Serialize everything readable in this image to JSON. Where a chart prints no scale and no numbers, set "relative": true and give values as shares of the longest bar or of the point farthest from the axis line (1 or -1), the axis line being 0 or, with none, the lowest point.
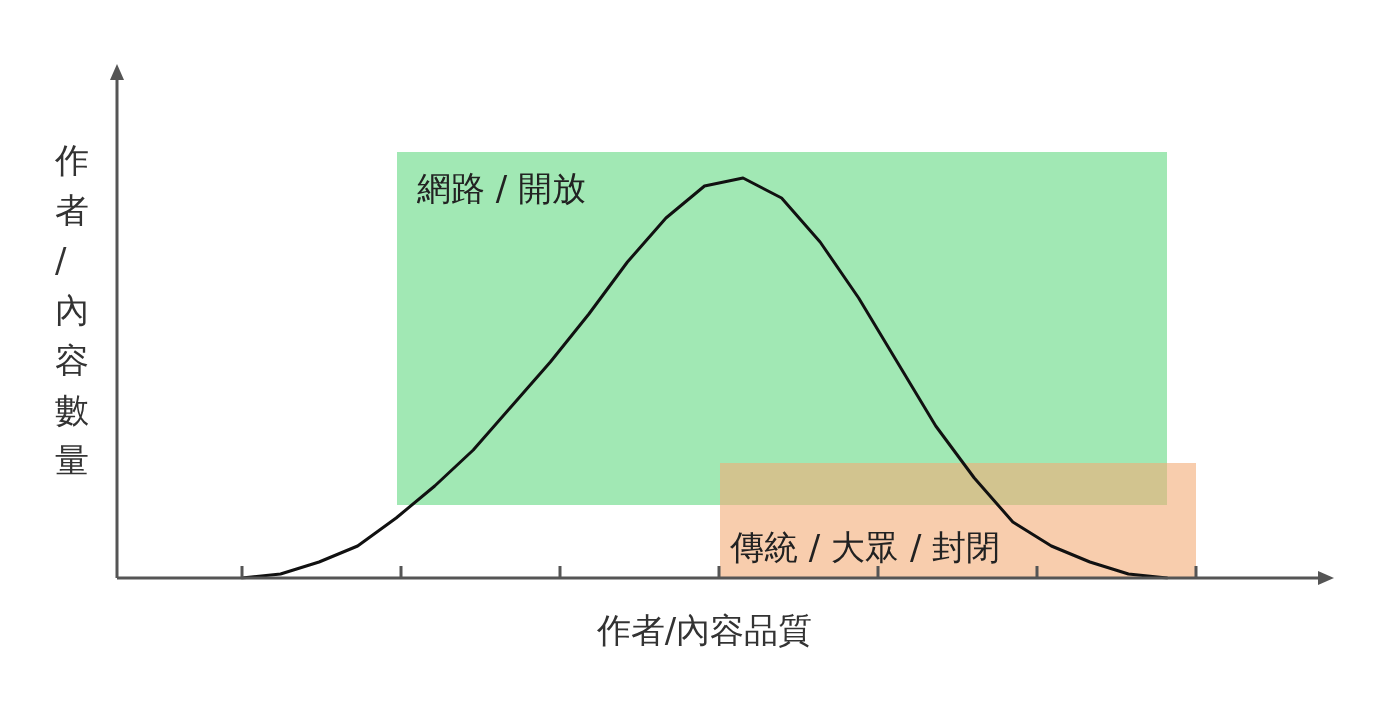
{
  "chart_data": {
    "type": "line",
    "relative": true,
    "xlabel": "作者/內容品質",
    "ylabel": "作者/內容數量",
    "categories": [
      null,
      null,
      null,
      null,
      null,
      null,
      null,
      null,
      null,
      null,
      null,
      null,
      null,
      null,
      null,
      null,
      null,
      null,
      null,
      null,
      null,
      null,
      null,
      null,
      null
    ],
    "marker": "none",
    "line_style": "solid",
    "series": [
      {
        "color": "#111111",
        "values": [
          0,
          0.01,
          0.04,
          0.08,
          0.15,
          0.23,
          0.32,
          0.43,
          0.54,
          0.66,
          0.79,
          0.9,
          0.98,
          1,
          0.95,
          0.84,
          0.7,
          0.54,
          0.38,
          0.25,
          0.14,
          0.08,
          0.04,
          0.01,
          0
        ]
      }
    ],
    "annotations": [
      "網路 / 開放",
      "傳統 / 大眾 / 封閉"
    ]
  }
}
